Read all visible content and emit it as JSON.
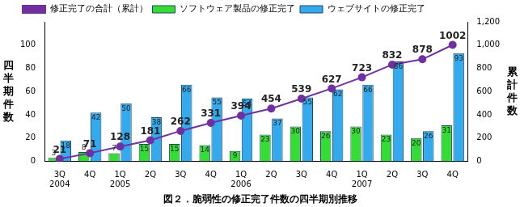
{
  "chart_data": {
    "type": "bar",
    "title": "図２．脆弱性の修正完了件数の四半期別推移",
    "y_label": "四半期件数",
    "y2_label": "累計件数",
    "categories": [
      "3Q 2004",
      "4Q",
      "1Q 2005",
      "2Q",
      "3Q",
      "4Q",
      "1Q 2006",
      "2Q",
      "3Q",
      "4Q",
      "1Q 2007",
      "2Q",
      "3Q",
      "4Q"
    ],
    "series": [
      {
        "name": "ソフトウェア製品の修正完了",
        "type": "bar",
        "color": "#33dd33",
        "values": [
          3,
          8,
          7,
          15,
          15,
          14,
          9,
          23,
          30,
          26,
          30,
          23,
          20,
          31
        ]
      },
      {
        "name": "ウェブサイトの修正完了",
        "type": "bar",
        "color": "#33aaee",
        "values": [
          18,
          42,
          50,
          38,
          66,
          55,
          54,
          37,
          55,
          62,
          66,
          86,
          26,
          93
        ]
      },
      {
        "name": "修正完了の合計（累計）",
        "type": "line",
        "axis": "y2",
        "color": "#7030a0",
        "marker": "circle",
        "values": [
          21,
          71,
          128,
          181,
          262,
          331,
          394,
          454,
          539,
          627,
          723,
          832,
          878,
          1002
        ]
      }
    ],
    "ylim": [
      0,
      120
    ],
    "yticks": [
      0,
      20,
      40,
      60,
      80,
      100
    ],
    "y2lim": [
      0,
      1200
    ],
    "y2ticks": [
      0,
      200,
      400,
      600,
      800,
      1000,
      1200
    ],
    "grid": false,
    "legend": "top",
    "data_labels": true
  }
}
